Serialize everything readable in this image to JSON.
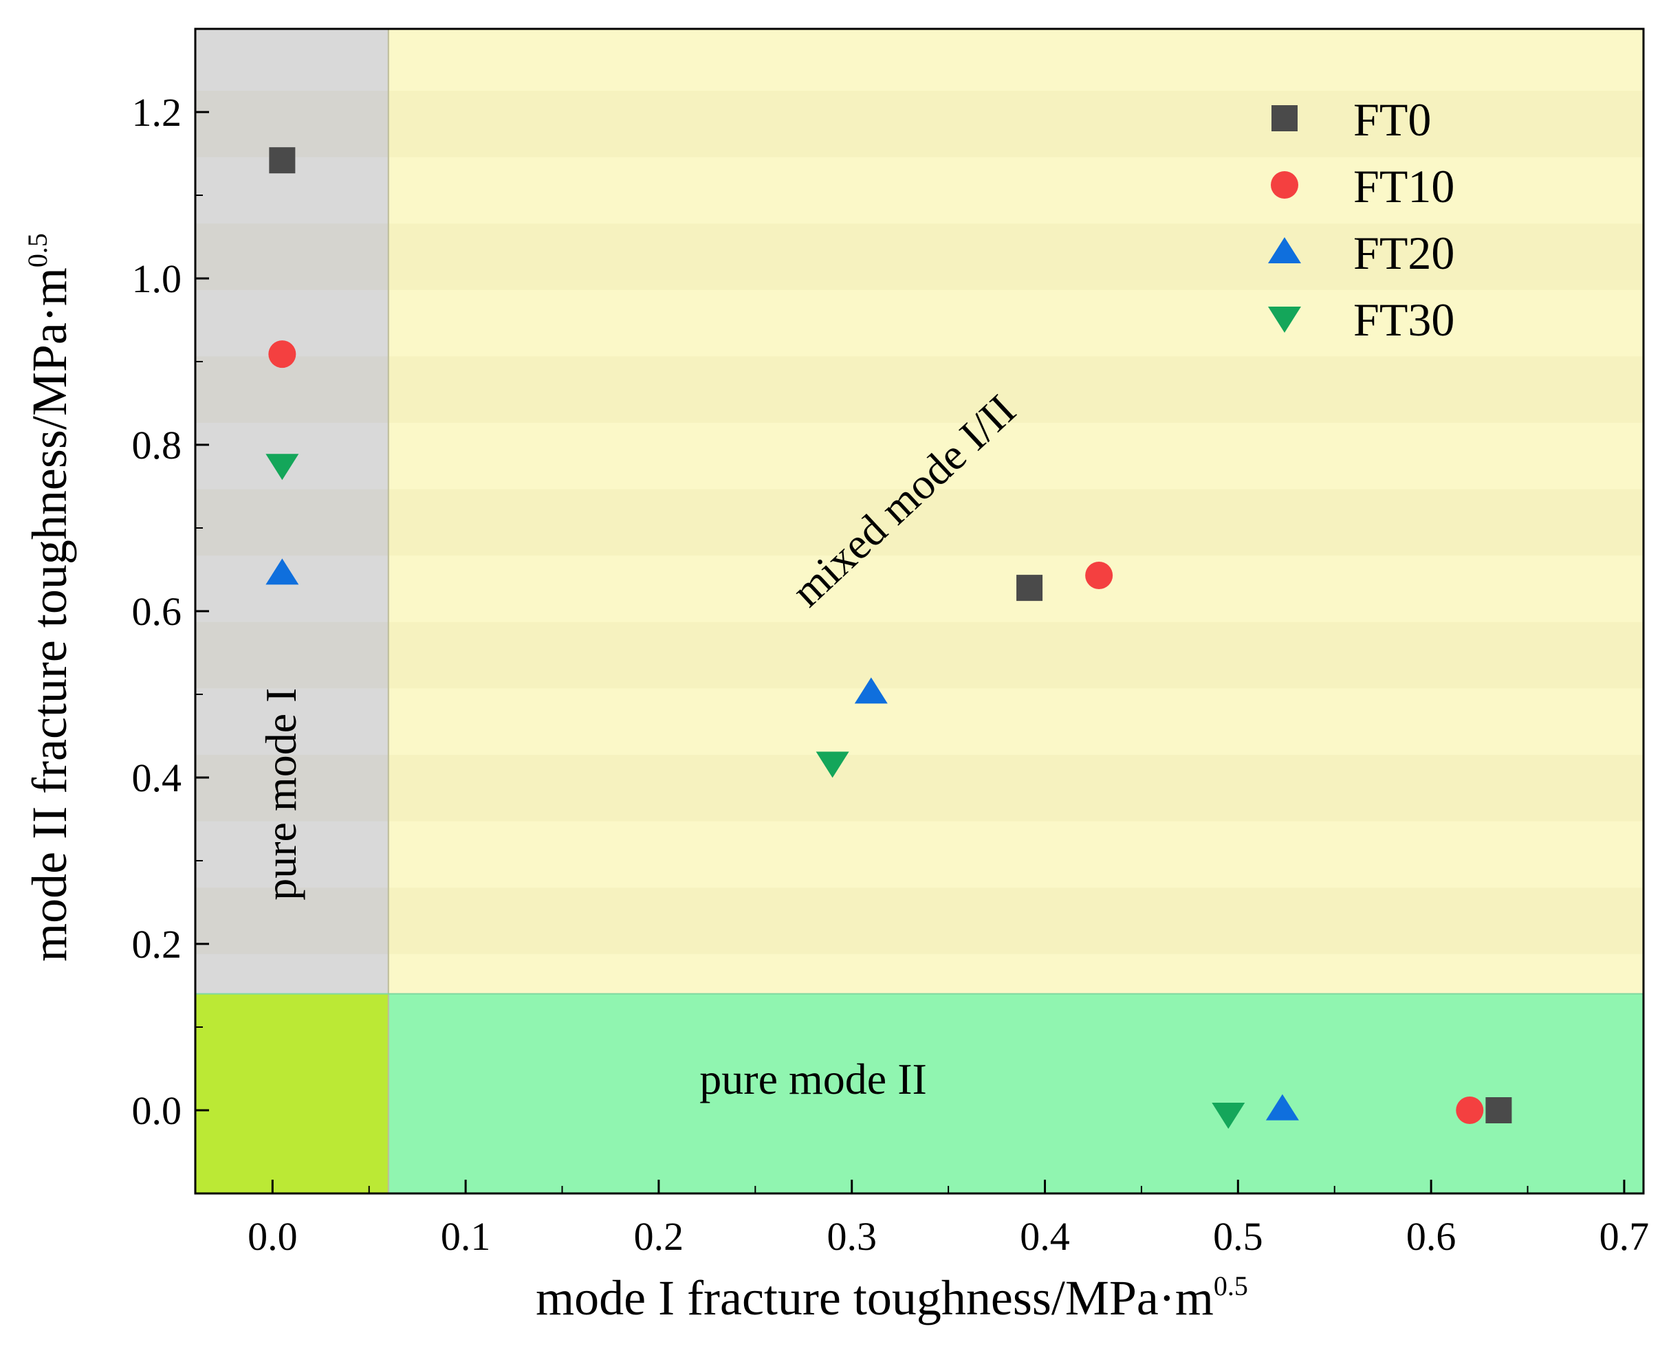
{
  "chart_data": {
    "type": "scatter",
    "xlabel": "mode I fracture toughness/MPa·m",
    "xlabel_sup": "0.5",
    "ylabel": "mode II fracture toughness/MPa·m",
    "ylabel_sup": "0.5",
    "xlim": [
      -0.04,
      0.71
    ],
    "ylim": [
      -0.1,
      1.3
    ],
    "xticks": [
      0.0,
      0.1,
      0.2,
      0.3,
      0.4,
      0.5,
      0.6,
      0.7
    ],
    "xtick_labels": [
      "0.0",
      "0.1",
      "0.2",
      "0.3",
      "0.4",
      "0.5",
      "0.6",
      "0.7"
    ],
    "yticks": [
      0.0,
      0.2,
      0.4,
      0.6,
      0.8,
      1.0,
      1.2
    ],
    "ytick_labels": [
      "0.0",
      "0.2",
      "0.4",
      "0.6",
      "0.8",
      "1.0",
      "1.2"
    ],
    "regions": [
      {
        "name": "pure mode I",
        "label": "pure mode I",
        "x_range": [
          -0.04,
          0.06
        ],
        "y_range": [
          0.14,
          1.3
        ],
        "color": "#d9d9d9"
      },
      {
        "name": "mixed mode I/II",
        "label": "mixed mode I/II",
        "x_range": [
          0.06,
          0.71
        ],
        "y_range": [
          0.14,
          1.3
        ],
        "color": "#fbf8c8"
      },
      {
        "name": "pure mode II",
        "label": "pure mode II",
        "x_range": [
          0.06,
          0.71
        ],
        "y_range": [
          -0.1,
          0.14
        ],
        "color": "#90f5b0"
      },
      {
        "name": "corner",
        "label": "",
        "x_range": [
          -0.04,
          0.06
        ],
        "y_range": [
          -0.1,
          0.14
        ],
        "color": "#bbe935"
      }
    ],
    "legend_position": "top-right",
    "series": [
      {
        "name": "FT0",
        "marker": "square",
        "color": "#4a4a4a",
        "points": [
          [
            0.005,
            1.142
          ],
          [
            0.392,
            0.628
          ],
          [
            0.635,
            0.0
          ]
        ]
      },
      {
        "name": "FT10",
        "marker": "circle",
        "color": "#f44040",
        "points": [
          [
            0.005,
            0.909
          ],
          [
            0.428,
            0.643
          ],
          [
            0.62,
            0.0
          ]
        ]
      },
      {
        "name": "FT20",
        "marker": "triangle-up",
        "color": "#0f6fdd",
        "points": [
          [
            0.005,
            0.646
          ],
          [
            0.31,
            0.503
          ],
          [
            0.523,
            0.002
          ]
        ]
      },
      {
        "name": "FT30",
        "marker": "triangle-down",
        "color": "#14a65a",
        "points": [
          [
            0.005,
            0.775
          ],
          [
            0.29,
            0.417
          ],
          [
            0.495,
            -0.005
          ]
        ]
      }
    ]
  }
}
